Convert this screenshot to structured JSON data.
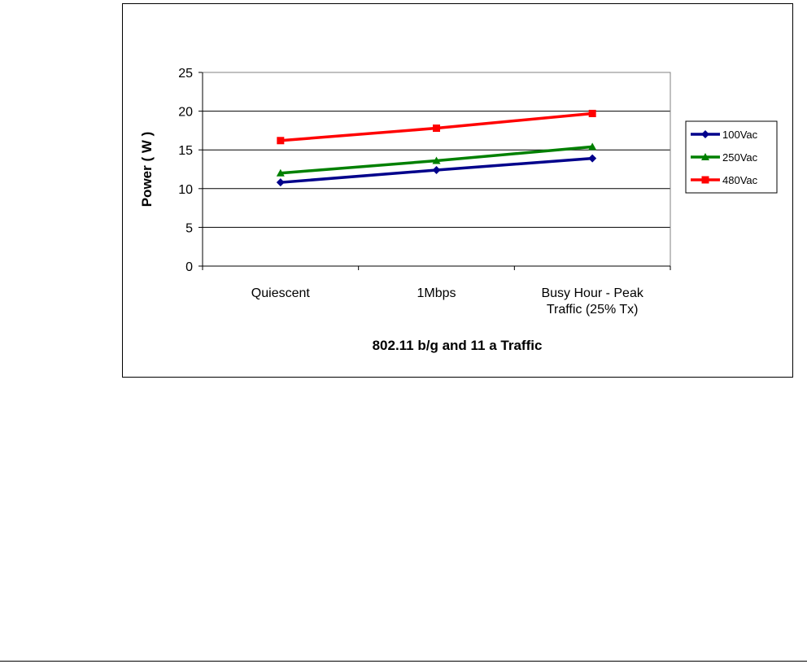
{
  "chart_data": {
    "type": "line",
    "xlabel": "802.11 b/g and 11 a Traffic",
    "ylabel": "Power ( W )",
    "ylim": [
      0,
      25
    ],
    "yticks": [
      0,
      5,
      10,
      15,
      20,
      25
    ],
    "grid": true,
    "legend_position": "right",
    "categories": [
      [
        "Quiescent"
      ],
      [
        "1Mbps"
      ],
      [
        "Busy Hour - Peak",
        "Traffic (25% Tx)"
      ]
    ],
    "series": [
      {
        "name": "100Vac",
        "values": [
          10.8,
          12.4,
          13.9
        ],
        "color": "#00008B",
        "marker": "diamond"
      },
      {
        "name": "250Vac",
        "values": [
          12.0,
          13.6,
          15.4
        ],
        "color": "#008000",
        "marker": "triangle"
      },
      {
        "name": "480Vac",
        "values": [
          16.2,
          17.8,
          19.7
        ],
        "color": "#FF0000",
        "marker": "square"
      }
    ]
  }
}
